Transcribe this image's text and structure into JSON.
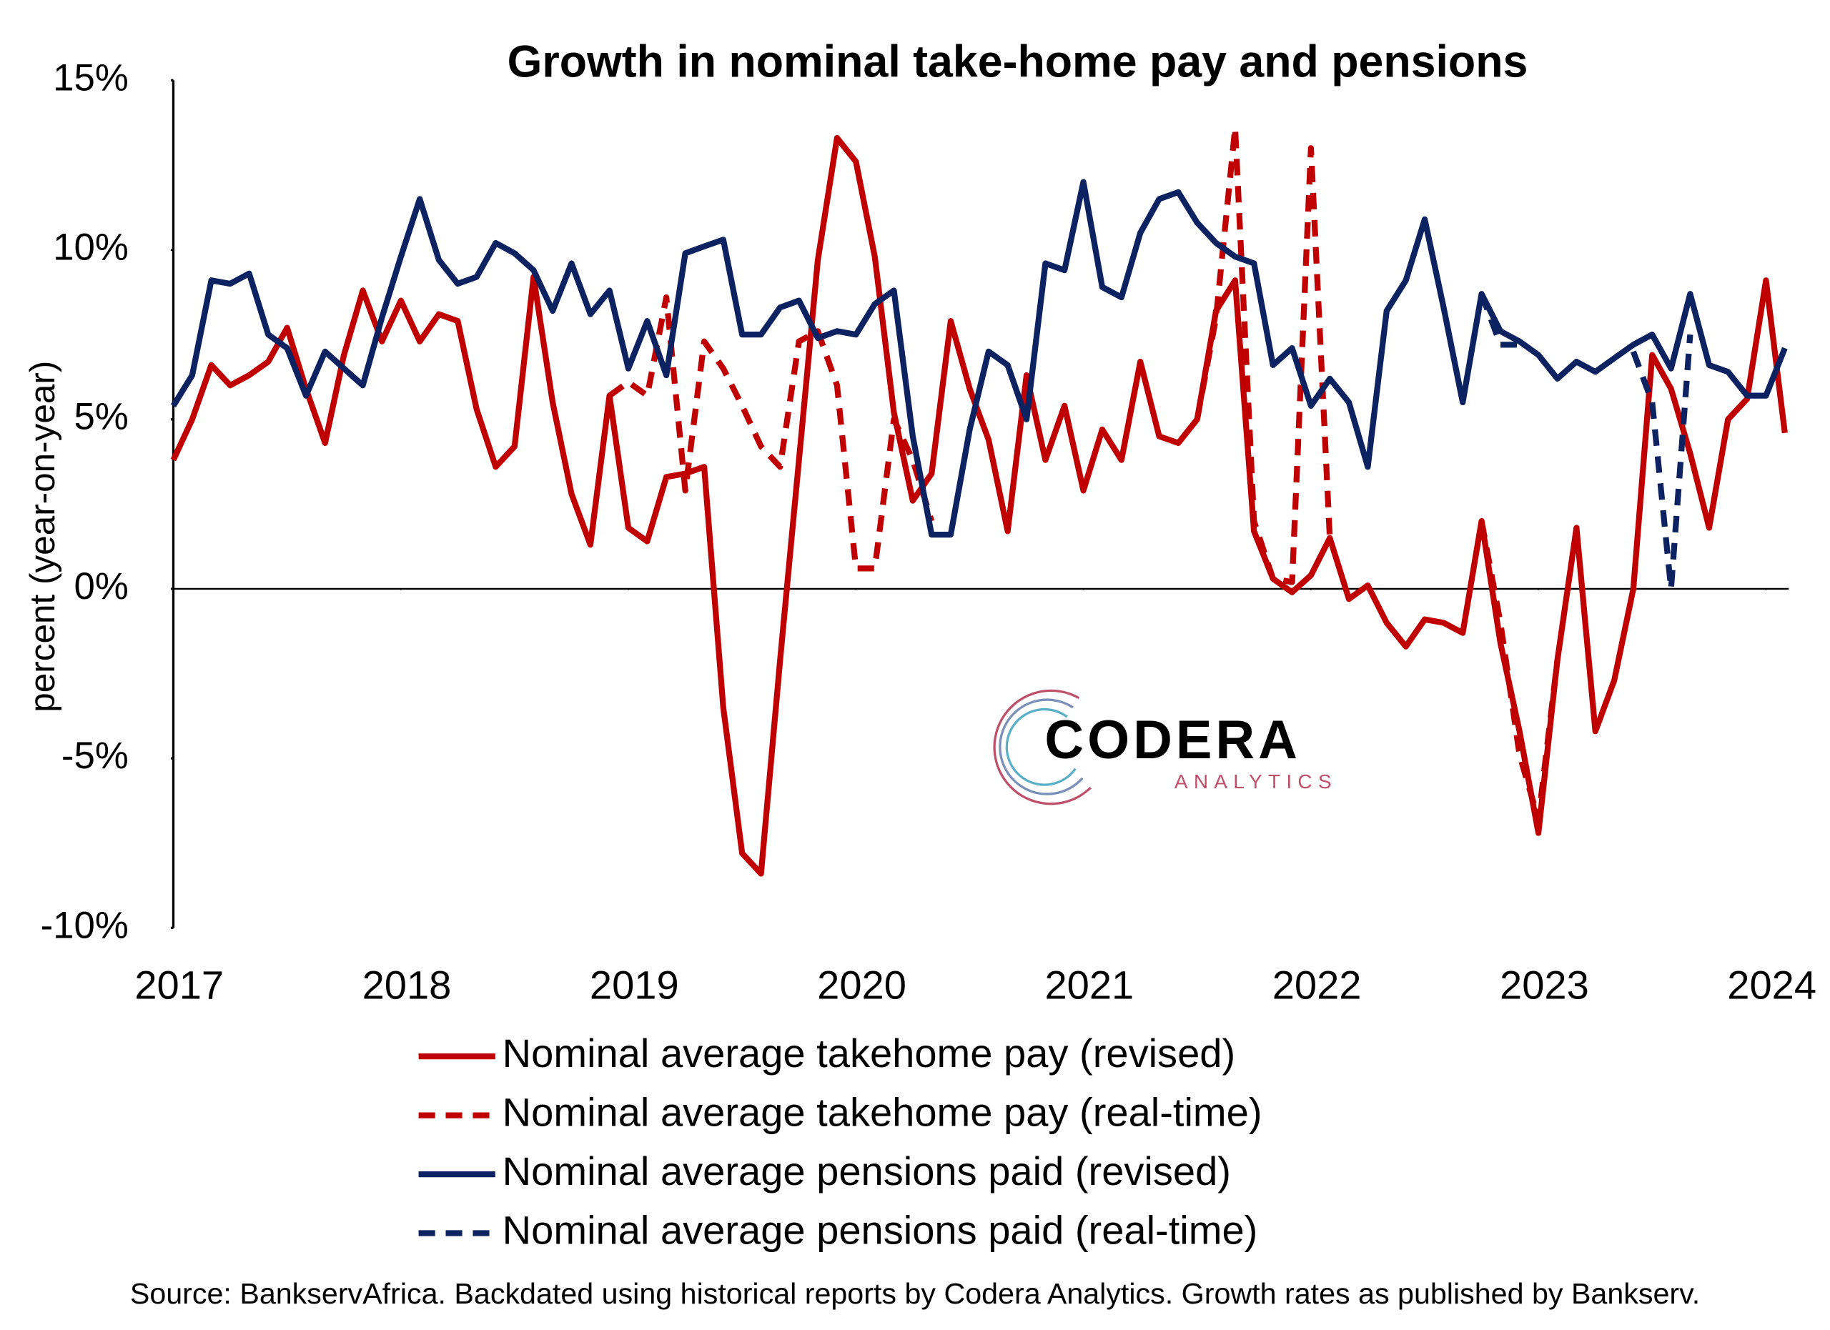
{
  "chart_data": {
    "type": "line",
    "title": "Growth in nominal take-home pay and pensions",
    "y_label": "percent (year-on-year)",
    "source": "Source: BankservAfrica. Backdated using historical reports by Codera Analytics. Growth rates as published by Bankserv.",
    "logo_text": "CODERA",
    "logo_subtext": "ANALYTICS",
    "x": [
      2017.0,
      2017.083,
      2017.167,
      2017.25,
      2017.333,
      2017.417,
      2017.5,
      2017.583,
      2017.667,
      2017.75,
      2017.833,
      2017.917,
      2018.0,
      2018.083,
      2018.167,
      2018.25,
      2018.333,
      2018.417,
      2018.5,
      2018.583,
      2018.667,
      2018.75,
      2018.833,
      2018.917,
      2019.0,
      2019.083,
      2019.167,
      2019.25,
      2019.333,
      2019.417,
      2019.5,
      2019.583,
      2019.667,
      2019.75,
      2019.833,
      2019.917,
      2020.0,
      2020.083,
      2020.167,
      2020.25,
      2020.333,
      2020.417,
      2020.5,
      2020.583,
      2020.667,
      2020.75,
      2020.833,
      2020.917,
      2021.0,
      2021.083,
      2021.167,
      2021.25,
      2021.333,
      2021.417,
      2021.5,
      2021.583,
      2021.667,
      2021.75,
      2021.833,
      2021.917,
      2022.0,
      2022.083,
      2022.167,
      2022.25,
      2022.333,
      2022.417,
      2022.5,
      2022.583,
      2022.667,
      2022.75,
      2022.833,
      2022.917,
      2023.0,
      2023.083,
      2023.167,
      2023.25,
      2023.333,
      2023.417,
      2023.5,
      2023.583,
      2023.667,
      2023.75,
      2023.833,
      2023.917,
      2024.0,
      2024.083
    ],
    "series": [
      {
        "name": "Nominal average takehome pay (revised)",
        "color": "#c00000",
        "dashed": false,
        "values": [
          3.8,
          5.0,
          6.6,
          6.0,
          6.3,
          6.7,
          7.7,
          5.9,
          4.3,
          6.9,
          8.8,
          7.3,
          8.5,
          7.3,
          8.1,
          7.9,
          5.3,
          3.6,
          4.2,
          9.2,
          5.5,
          2.8,
          1.3,
          5.7,
          1.8,
          1.4,
          3.3,
          3.4,
          3.6,
          -3.5,
          -7.8,
          -8.4,
          -2.1,
          3.8,
          9.7,
          13.3,
          12.6,
          9.8,
          5.2,
          2.6,
          3.4,
          7.9,
          5.9,
          4.4,
          1.7,
          6.3,
          3.8,
          5.4,
          2.9,
          4.7,
          3.8,
          6.7,
          4.5,
          4.3,
          5.0,
          8.2,
          9.1,
          1.7,
          0.3,
          -0.1,
          0.4,
          1.5,
          -0.3,
          0.1,
          -1.0,
          -1.7,
          -0.9,
          -1.0,
          -1.3,
          2.0,
          -1.6,
          -4.2,
          -7.2,
          -2.1,
          1.8,
          -4.2,
          -2.7,
          0.0,
          6.9,
          5.9,
          4.0,
          1.8,
          5.0,
          5.6,
          9.1,
          4.6
        ]
      },
      {
        "name": "Nominal average takehome pay (real-time)",
        "color": "#c00000",
        "dashed": true,
        "values": [
          null,
          null,
          null,
          null,
          null,
          null,
          null,
          null,
          null,
          null,
          null,
          null,
          null,
          null,
          null,
          null,
          null,
          null,
          null,
          null,
          null,
          null,
          null,
          5.7,
          6.1,
          5.7,
          8.6,
          2.9,
          7.3,
          6.5,
          5.4,
          4.2,
          3.6,
          7.3,
          7.6,
          6.0,
          0.6,
          0.6,
          5.0,
          3.8,
          2.0,
          null,
          null,
          null,
          null,
          null,
          null,
          null,
          null,
          null,
          null,
          null,
          null,
          null,
          5.0,
          8.0,
          13.6,
          2.0,
          0.3,
          0.2,
          13.0,
          1.5,
          null,
          null,
          null,
          null,
          null,
          null,
          null,
          2.0,
          -1.0,
          -4.9,
          -6.8,
          -2.1,
          null,
          null,
          null,
          null,
          null,
          null,
          null,
          null,
          null,
          null,
          null,
          null
        ]
      },
      {
        "name": "Nominal average pensions paid (revised)",
        "color": "#0d2260",
        "dashed": false,
        "values": [
          5.4,
          6.3,
          9.1,
          9.0,
          9.3,
          7.5,
          7.1,
          5.7,
          7.0,
          6.5,
          6.0,
          8.0,
          9.8,
          11.5,
          9.7,
          9.0,
          9.2,
          10.2,
          9.9,
          9.4,
          8.2,
          9.6,
          8.1,
          8.8,
          6.5,
          7.9,
          6.3,
          9.9,
          10.1,
          10.3,
          7.5,
          7.5,
          8.3,
          8.5,
          7.4,
          7.6,
          7.5,
          8.4,
          8.8,
          4.5,
          1.6,
          1.6,
          4.7,
          7.0,
          6.6,
          5.0,
          9.6,
          9.4,
          12.0,
          8.9,
          8.6,
          10.5,
          11.5,
          11.7,
          10.8,
          10.2,
          9.8,
          9.6,
          6.6,
          7.1,
          5.4,
          6.2,
          5.5,
          3.6,
          8.2,
          9.1,
          10.9,
          8.3,
          5.5,
          8.7,
          7.6,
          7.3,
          6.9,
          6.2,
          6.7,
          6.4,
          6.8,
          7.2,
          7.5,
          6.5,
          8.7,
          6.6,
          6.4,
          5.7,
          5.7,
          7.1
        ]
      },
      {
        "name": "Nominal average pensions paid (real-time)",
        "color": "#0d2260",
        "dashed": true,
        "values": [
          null,
          null,
          null,
          null,
          null,
          null,
          null,
          null,
          null,
          null,
          null,
          null,
          null,
          null,
          null,
          null,
          null,
          null,
          null,
          null,
          null,
          null,
          null,
          null,
          null,
          null,
          null,
          null,
          null,
          null,
          null,
          null,
          null,
          null,
          null,
          null,
          null,
          null,
          null,
          null,
          null,
          null,
          null,
          null,
          null,
          null,
          null,
          null,
          null,
          null,
          null,
          null,
          null,
          null,
          null,
          null,
          null,
          null,
          null,
          null,
          null,
          null,
          null,
          null,
          null,
          null,
          null,
          null,
          null,
          8.7,
          7.2,
          7.2,
          null,
          null,
          null,
          null,
          null,
          7.0,
          5.5,
          0.0,
          7.5,
          null,
          null,
          null,
          null,
          null
        ]
      }
    ],
    "xlim": [
      2017,
      2024.1
    ],
    "xticks": [
      2017,
      2018,
      2019,
      2020,
      2021,
      2022,
      2023,
      2024
    ],
    "ylim": [
      -10,
      15
    ],
    "yticks": [
      {
        "value": -10,
        "label": "-10%"
      },
      {
        "value": -5,
        "label": "-5%"
      },
      {
        "value": 0,
        "label": "0%"
      },
      {
        "value": 5,
        "label": "5%"
      },
      {
        "value": 10,
        "label": "10%"
      },
      {
        "value": 15,
        "label": "15%"
      }
    ],
    "zero_line": true,
    "legend": "bottom"
  }
}
